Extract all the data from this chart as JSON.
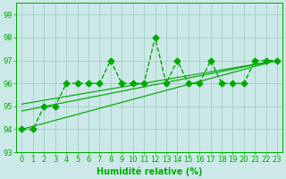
{
  "title": "",
  "xlabel": "Humidité relative (%)",
  "ylabel": "",
  "xlim": [
    -0.5,
    23.5
  ],
  "ylim": [
    93,
    99.5
  ],
  "yticks": [
    93,
    94,
    95,
    96,
    97,
    98,
    99
  ],
  "xticks": [
    0,
    1,
    2,
    3,
    4,
    5,
    6,
    7,
    8,
    9,
    10,
    11,
    12,
    13,
    14,
    15,
    16,
    17,
    18,
    19,
    20,
    21,
    22,
    23
  ],
  "bg_color": "#cce8e8",
  "grid_color": "#99ccbb",
  "line_color": "#00aa00",
  "series_main": [
    94,
    94,
    95,
    95,
    96,
    96,
    96,
    96,
    97,
    96,
    96,
    96,
    98,
    96,
    97,
    96,
    96,
    97,
    96,
    96,
    96,
    97,
    97,
    97
  ],
  "trend_lines": [
    {
      "x0": 0,
      "y0": 94.0,
      "x1": 23,
      "y1": 97.0
    },
    {
      "x0": 0,
      "y0": 94.8,
      "x1": 23,
      "y1": 97.0
    },
    {
      "x0": 0,
      "y0": 95.1,
      "x1": 23,
      "y1": 97.0
    }
  ],
  "font_size_tick": 6,
  "font_size_label": 7,
  "line_width": 1.0,
  "marker_size": 3.5
}
